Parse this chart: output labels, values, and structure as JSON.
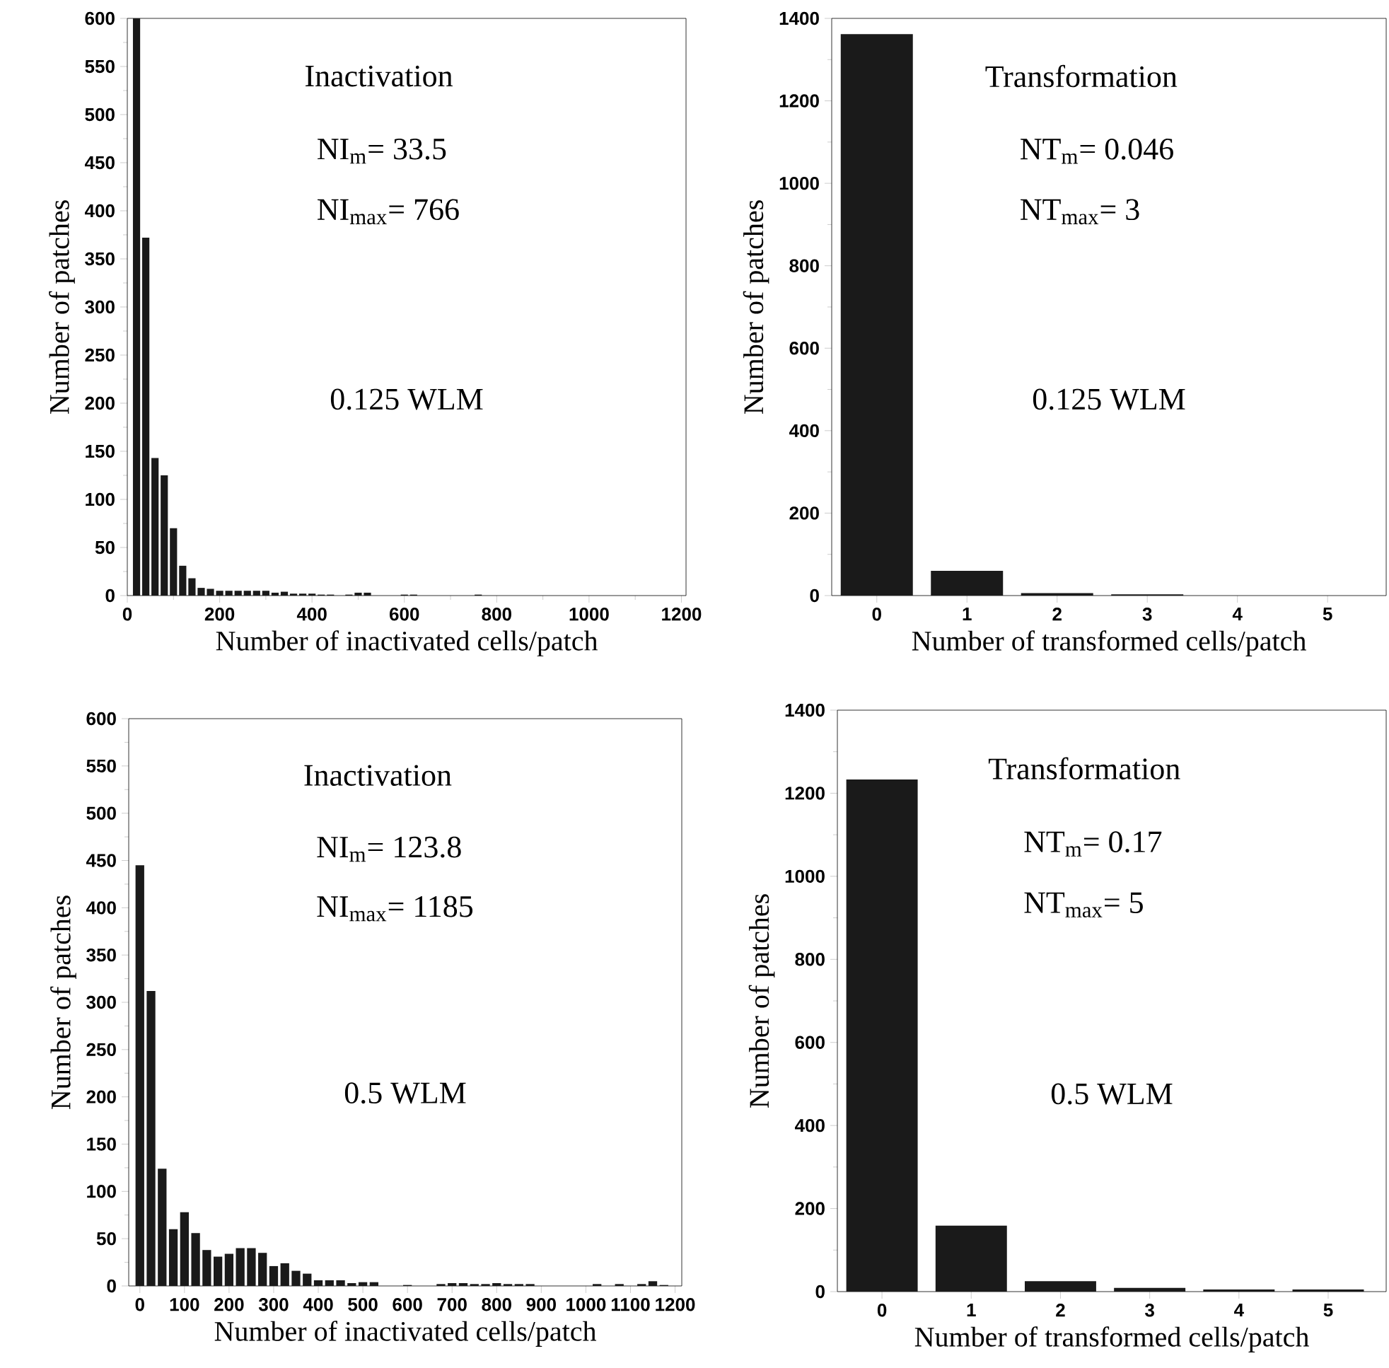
{
  "chart_data": [
    {
      "type": "histogram",
      "xlabel": "Number of inactivated cells/patch",
      "ylabel": "Number of patches",
      "color": "#1a1a1a",
      "annotations": [
        "Inactivation",
        "NI$_{m}$= 33.5",
        "NI$_{max}$= 766",
        "0.125 WLM"
      ],
      "bins": [
        10,
        30,
        50,
        70,
        90,
        110,
        130,
        150,
        170,
        190,
        210,
        230,
        250,
        270,
        290,
        310,
        330,
        350,
        370,
        390,
        410,
        430,
        450,
        470,
        490,
        510,
        530,
        550,
        570,
        590,
        610,
        630,
        650,
        670,
        690,
        710,
        730,
        750,
        770,
        790,
        810,
        830,
        850,
        870,
        890,
        910,
        930,
        950,
        970,
        990,
        1010,
        1030,
        1050,
        1070,
        1090,
        1110,
        1130,
        1150,
        1170,
        1190,
        1210
      ],
      "values": [
        600,
        372,
        143,
        125,
        70,
        31,
        18,
        8,
        7,
        5,
        5,
        5,
        5,
        5,
        5,
        3,
        4,
        2,
        2,
        2,
        1,
        1,
        0,
        1,
        3,
        3,
        0,
        0,
        0,
        1,
        1,
        0,
        0,
        0,
        0,
        0,
        0,
        1,
        0,
        0,
        0,
        0,
        0,
        0,
        0,
        0,
        0,
        0,
        0,
        0,
        0,
        0,
        0,
        0,
        0,
        0,
        0,
        0,
        0,
        0
      ],
      "xlim": [
        0,
        1210
      ],
      "xticks": [
        0,
        200,
        400,
        600,
        800,
        1000,
        1200
      ],
      "ylim": [
        0,
        600
      ],
      "yticks": [
        0,
        50,
        100,
        150,
        200,
        250,
        300,
        350,
        400,
        450,
        500,
        550,
        600
      ]
    },
    {
      "type": "bar",
      "xlabel": "Number of transformed cells/patch",
      "ylabel": "Number of patches",
      "color": "#1a1a1a",
      "annotations": [
        "Transformation",
        "NT$_{m}$= 0.046",
        "NT$_{max}$= 3",
        "0.125 WLM"
      ],
      "categories": [
        "0",
        "1",
        "2",
        "3",
        "4",
        "5"
      ],
      "values": [
        1362,
        60,
        6,
        3,
        0,
        0
      ],
      "ylim": [
        0,
        1400
      ],
      "yticks": [
        0,
        200,
        400,
        600,
        800,
        1000,
        1200,
        1400
      ]
    },
    {
      "type": "histogram",
      "xlabel": "Number of inactivated cells/patch",
      "ylabel": "Number of patches",
      "color": "#1a1a1a",
      "annotations": [
        "Inactivation",
        "NI$_{m}$= 123.8",
        "NI$_{max}$= 1185",
        "0.5 WLM"
      ],
      "bins": [
        -12.5,
        12.5,
        37.5,
        62.5,
        87.5,
        112.5,
        137.5,
        162.5,
        187.5,
        212.5,
        237.5,
        262.5,
        287.5,
        312.5,
        337.5,
        362.5,
        387.5,
        412.5,
        437.5,
        462.5,
        487.5,
        512.5,
        537.5,
        562.5,
        587.5,
        612.5,
        637.5,
        662.5,
        687.5,
        712.5,
        737.5,
        762.5,
        787.5,
        812.5,
        837.5,
        862.5,
        887.5,
        912.5,
        937.5,
        962.5,
        987.5,
        1012.5,
        1037.5,
        1062.5,
        1087.5,
        1112.5,
        1137.5,
        1162.5,
        1187.5,
        1212.5
      ],
      "values": [
        445,
        312,
        124,
        60,
        78,
        56,
        38,
        31,
        34,
        40,
        40,
        35,
        21,
        24,
        16,
        13,
        6,
        6,
        6,
        3,
        4,
        4,
        0,
        0,
        1,
        0,
        0,
        2,
        3,
        3,
        2,
        2,
        3,
        2,
        2,
        2,
        0,
        0,
        0,
        0,
        0,
        2,
        0,
        2,
        0,
        2,
        5,
        1,
        0
      ],
      "xlim": [
        -25,
        1215
      ],
      "xticks": [
        0,
        100,
        200,
        300,
        400,
        500,
        600,
        700,
        800,
        900,
        1000,
        1100,
        1200
      ],
      "ylim": [
        0,
        600
      ],
      "yticks": [
        0,
        50,
        100,
        150,
        200,
        250,
        300,
        350,
        400,
        450,
        500,
        550,
        600
      ]
    },
    {
      "type": "bar",
      "xlabel": "Number of transformed cells/patch",
      "ylabel": "Number of patches",
      "color": "#1a1a1a",
      "annotations": [
        "Transformation",
        "NT$_{m}$= 0.17",
        "NT$_{max}$= 5",
        "0.5 WLM"
      ],
      "categories": [
        "0",
        "1",
        "2",
        "3",
        "4",
        "5"
      ],
      "values": [
        1233,
        159,
        25,
        9,
        5,
        5
      ],
      "ylim": [
        0,
        1400
      ],
      "yticks": [
        0,
        200,
        400,
        600,
        800,
        1000,
        1200,
        1400
      ]
    }
  ]
}
